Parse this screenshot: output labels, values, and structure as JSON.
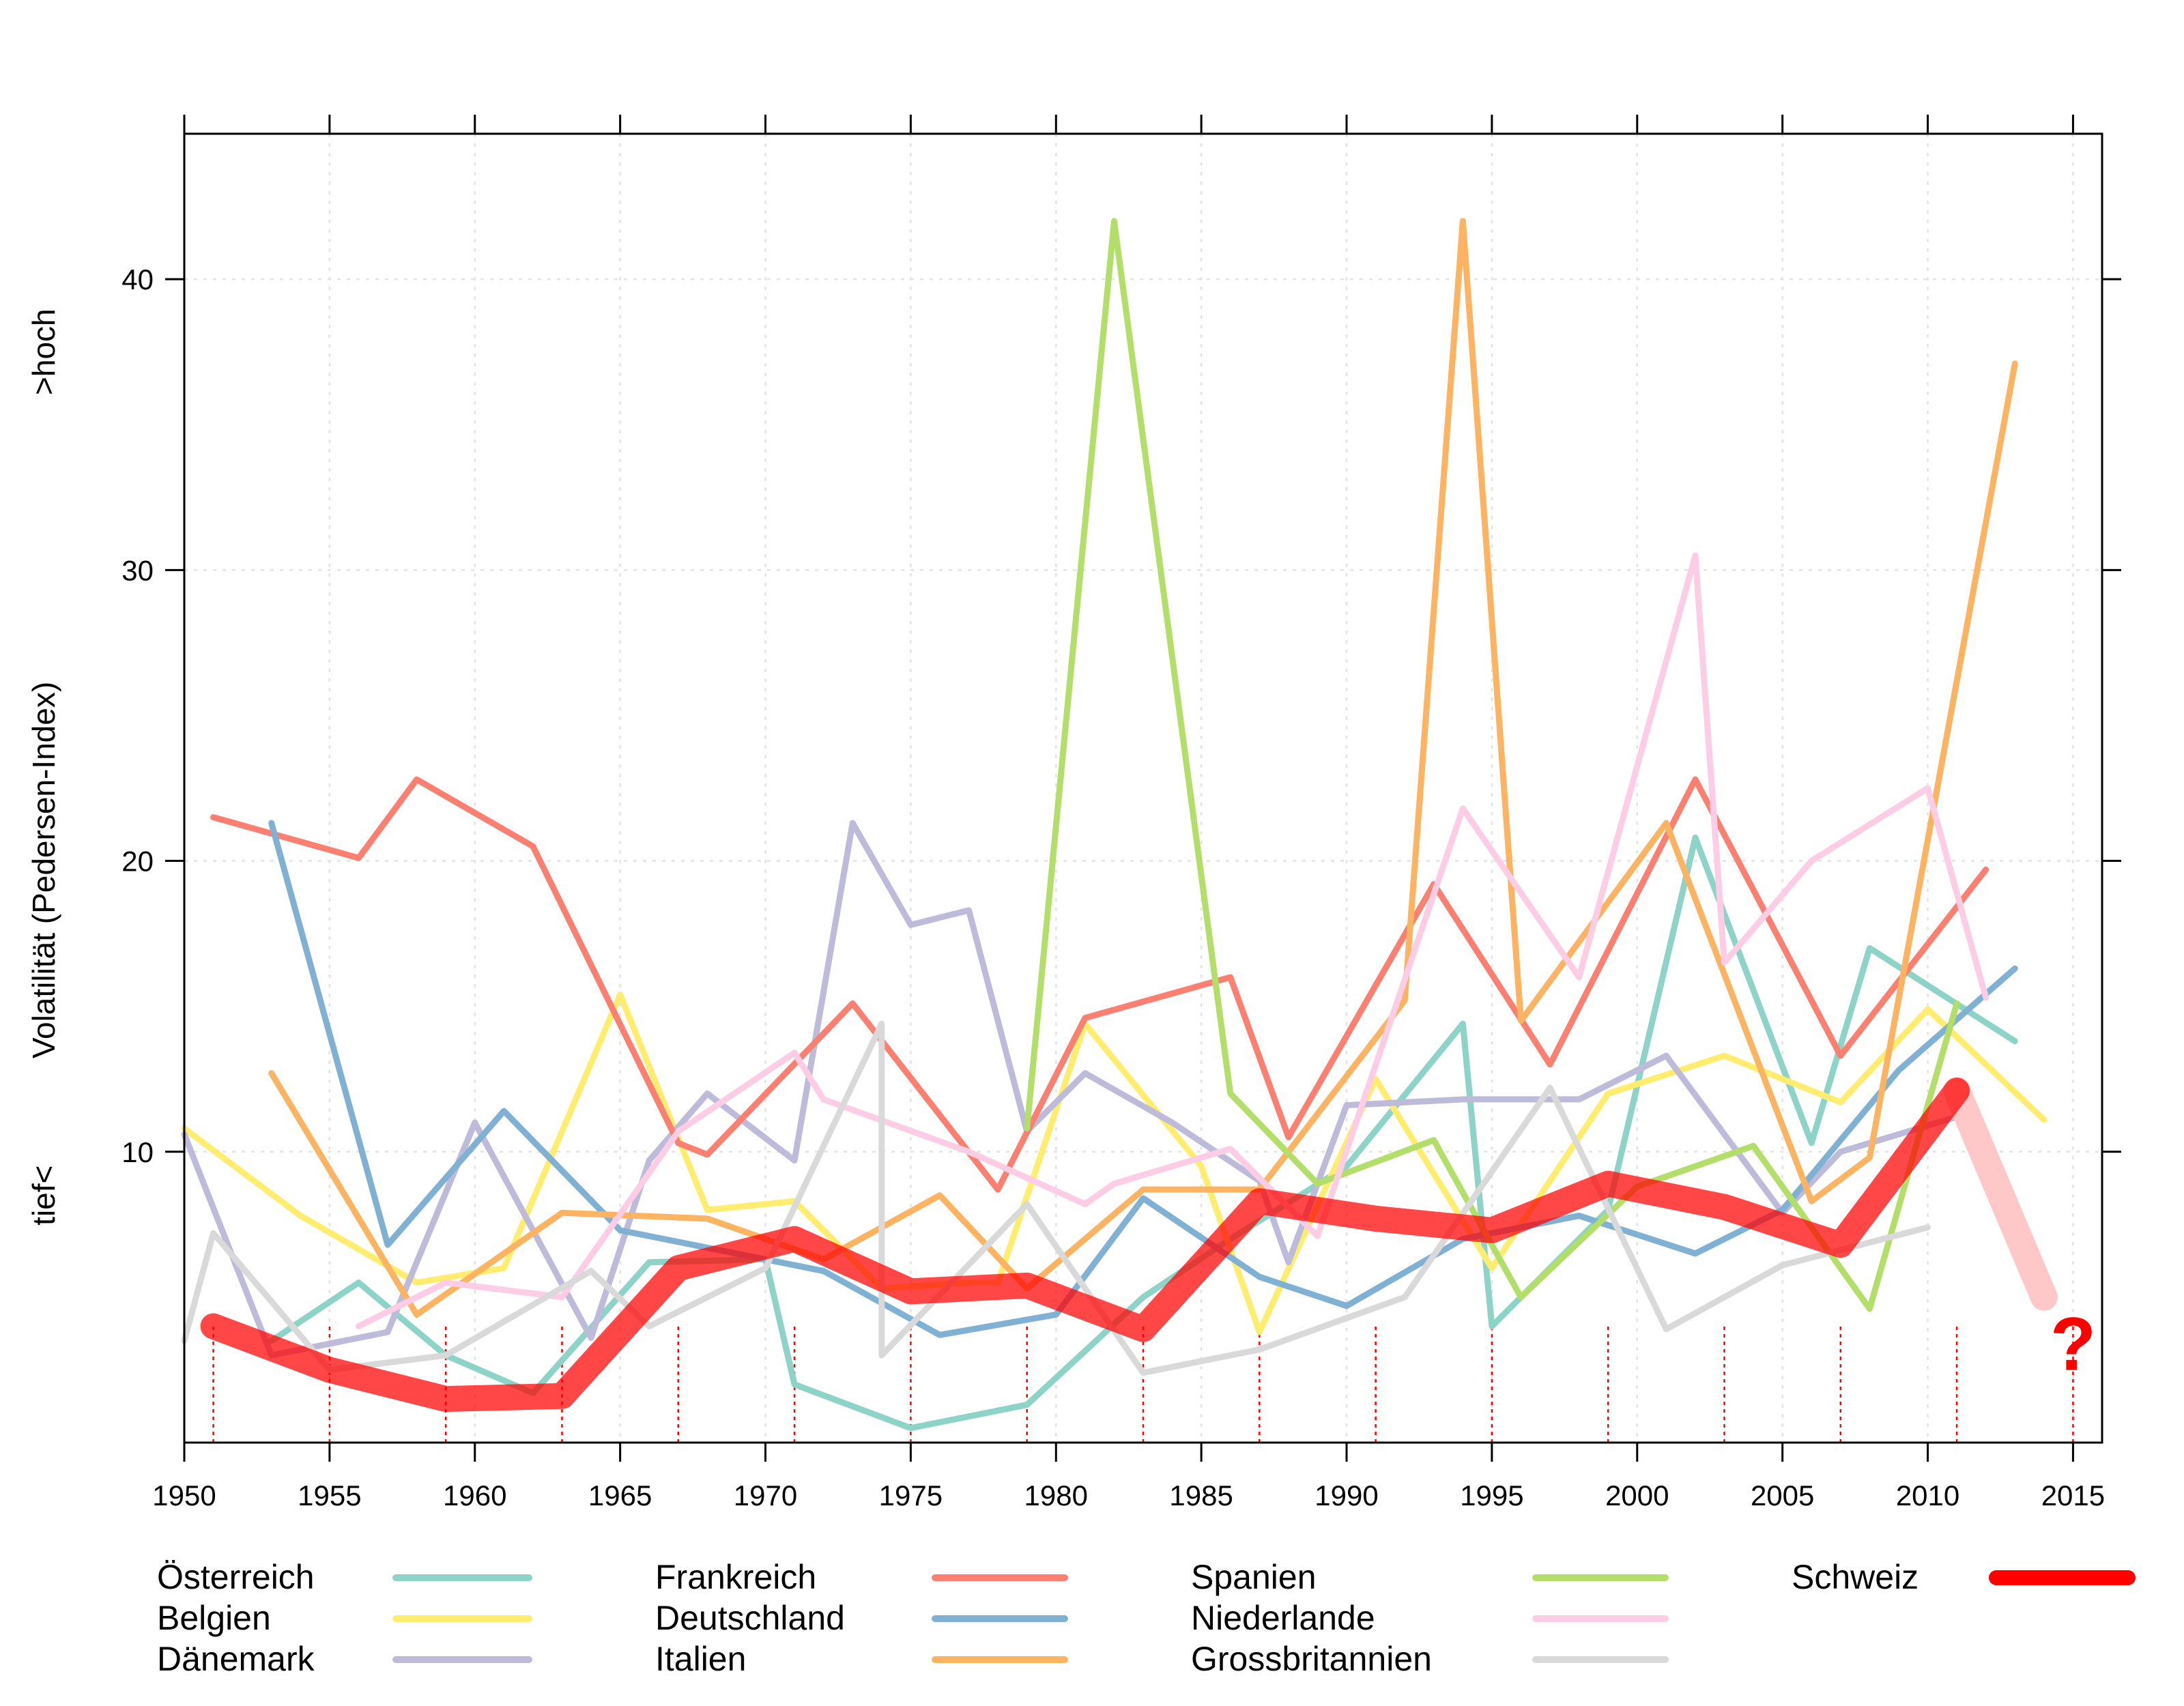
{
  "chart_data": {
    "type": "line",
    "xlabel": "",
    "ylabel": "Volatilität (Pedersen-Index)",
    "ylabel_low": "tief<",
    "ylabel_high": ">hoch",
    "xlim": [
      1950,
      2016
    ],
    "ylim": [
      0,
      45
    ],
    "x_ticks": [
      1950,
      1955,
      1960,
      1965,
      1970,
      1975,
      1980,
      1985,
      1990,
      1995,
      2000,
      2005,
      2010,
      2015
    ],
    "y_ticks": [
      10,
      20,
      30,
      40
    ],
    "grid": true,
    "legend_position": "bottom",
    "series": [
      {
        "name": "Österreich",
        "color": "#8DD3C7",
        "x": [
          1953,
          1956,
          1959,
          1962,
          1966,
          1970,
          1971,
          1975,
          1979,
          1983,
          1986,
          1990,
          1994,
          1995,
          1999,
          2002,
          2006,
          2008,
          2013
        ],
        "y": [
          3.5,
          5.5,
          3.0,
          1.7,
          6.2,
          6.3,
          2.0,
          0.5,
          1.3,
          5.0,
          7.0,
          9.5,
          14.4,
          4.0,
          8.0,
          20.8,
          10.3,
          17.0,
          13.8
        ]
      },
      {
        "name": "Belgien",
        "color": "#FFED6F",
        "x": [
          1950,
          1954,
          1958,
          1961,
          1965,
          1968,
          1971,
          1974,
          1977,
          1978,
          1981,
          1985,
          1987,
          1991,
          1995,
          1999,
          2003,
          2007,
          2010,
          2014
        ],
        "y": [
          10.8,
          7.8,
          5.5,
          6.0,
          15.4,
          8.0,
          8.3,
          5.3,
          5.5,
          5.5,
          14.4,
          9.5,
          3.8,
          12.5,
          6.0,
          12.0,
          13.3,
          11.7,
          14.9,
          11.1
        ]
      },
      {
        "name": "Dänemark",
        "color": "#BEBADA",
        "x": [
          1950,
          1953,
          1957,
          1960,
          1964,
          1966,
          1968,
          1971,
          1973,
          1975,
          1977,
          1979,
          1981,
          1984,
          1987,
          1988,
          1990,
          1994,
          1998,
          2001,
          2005,
          2007,
          2011
        ],
        "y": [
          10.6,
          3.0,
          3.8,
          11.0,
          3.6,
          9.7,
          12.0,
          9.7,
          21.3,
          17.8,
          18.3,
          10.7,
          12.7,
          11.0,
          9.0,
          6.2,
          11.6,
          11.8,
          11.8,
          13.3,
          7.9,
          10.0,
          11.2
        ]
      },
      {
        "name": "Frankreich",
        "color": "#FB8072",
        "x": [
          1951,
          1956,
          1958,
          1962,
          1967,
          1968,
          1973,
          1978,
          1981,
          1986,
          1988,
          1993,
          1997,
          2002,
          2007,
          2012
        ],
        "y": [
          21.5,
          20.1,
          22.8,
          20.5,
          10.3,
          9.9,
          15.1,
          8.7,
          14.6,
          16.0,
          10.5,
          19.2,
          13.0,
          22.8,
          13.3,
          19.7
        ]
      },
      {
        "name": "Deutschland",
        "color": "#80B1D3",
        "x": [
          1953,
          1957,
          1961,
          1965,
          1969,
          1972,
          1976,
          1980,
          1983,
          1987,
          1990,
          1994,
          1998,
          2002,
          2005,
          2009,
          2013
        ],
        "y": [
          21.3,
          6.8,
          11.4,
          7.3,
          6.5,
          5.9,
          3.7,
          4.4,
          8.4,
          5.7,
          4.7,
          7.0,
          7.8,
          6.5,
          8.0,
          12.8,
          16.3
        ]
      },
      {
        "name": "Italien",
        "color": "#FDB462",
        "x": [
          1953,
          1958,
          1963,
          1968,
          1972,
          1976,
          1979,
          1983,
          1987,
          1992,
          1994,
          1996,
          2001,
          2006,
          2008,
          2013
        ],
        "y": [
          12.7,
          4.4,
          7.9,
          7.7,
          6.3,
          8.5,
          5.3,
          8.7,
          8.7,
          15.2,
          42.0,
          14.5,
          21.3,
          8.3,
          9.8,
          37.1
        ]
      },
      {
        "name": "Spanien",
        "color": "#B3DE69",
        "x": [
          1979,
          1982,
          1986,
          1989,
          1993,
          1996,
          2000,
          2004,
          2008,
          2011
        ],
        "y": [
          10.8,
          42.0,
          12.0,
          8.9,
          10.4,
          5.0,
          8.8,
          10.2,
          4.6,
          15.1
        ]
      },
      {
        "name": "Niederlande",
        "color": "#FCCDE5",
        "x": [
          1956,
          1959,
          1963,
          1967,
          1971,
          1972,
          1977,
          1981,
          1982,
          1986,
          1989,
          1994,
          1998,
          2002,
          2003,
          2006,
          2010,
          2012
        ],
        "y": [
          4.0,
          5.5,
          5.0,
          10.7,
          13.4,
          11.8,
          10.0,
          8.2,
          8.9,
          10.1,
          7.1,
          21.8,
          16.0,
          30.5,
          16.5,
          20.0,
          22.5,
          15.3
        ]
      },
      {
        "name": "Grossbritannien",
        "color": "#D9D9D9",
        "x": [
          1950,
          1951,
          1955,
          1959,
          1964,
          1966,
          1970,
          1974,
          1974,
          1979,
          1983,
          1987,
          1992,
          1997,
          2001,
          2005,
          2010
        ],
        "y": [
          3.5,
          7.2,
          2.5,
          3.0,
          5.9,
          4.0,
          6.0,
          14.4,
          3.0,
          8.2,
          2.4,
          3.2,
          5.0,
          12.2,
          3.9,
          6.1,
          7.4
        ]
      },
      {
        "name": "Schweiz",
        "color": "#FF0000",
        "x": [
          1951,
          1955,
          1959,
          1963,
          1967,
          1971,
          1975,
          1979,
          1983,
          1987,
          1991,
          1995,
          1999,
          2003,
          2007,
          2011
        ],
        "y": [
          4.0,
          2.5,
          1.5,
          1.6,
          6.0,
          7.0,
          5.2,
          5.4,
          3.9,
          8.3,
          7.7,
          7.3,
          8.9,
          8.1,
          6.8,
          12.1
        ]
      }
    ],
    "projection": {
      "x": [
        2011,
        2014
      ],
      "y": [
        12.1,
        5.0
      ],
      "color": "#FFC8C8",
      "marker": "?",
      "marker_color": "#FF0000"
    },
    "election_markers": {
      "x": [
        1951,
        1955,
        1959,
        1963,
        1967,
        1971,
        1975,
        1979,
        1983,
        1987,
        1991,
        1995,
        1999,
        2003,
        2007,
        2011,
        2015
      ],
      "color": "#FF0000"
    }
  }
}
